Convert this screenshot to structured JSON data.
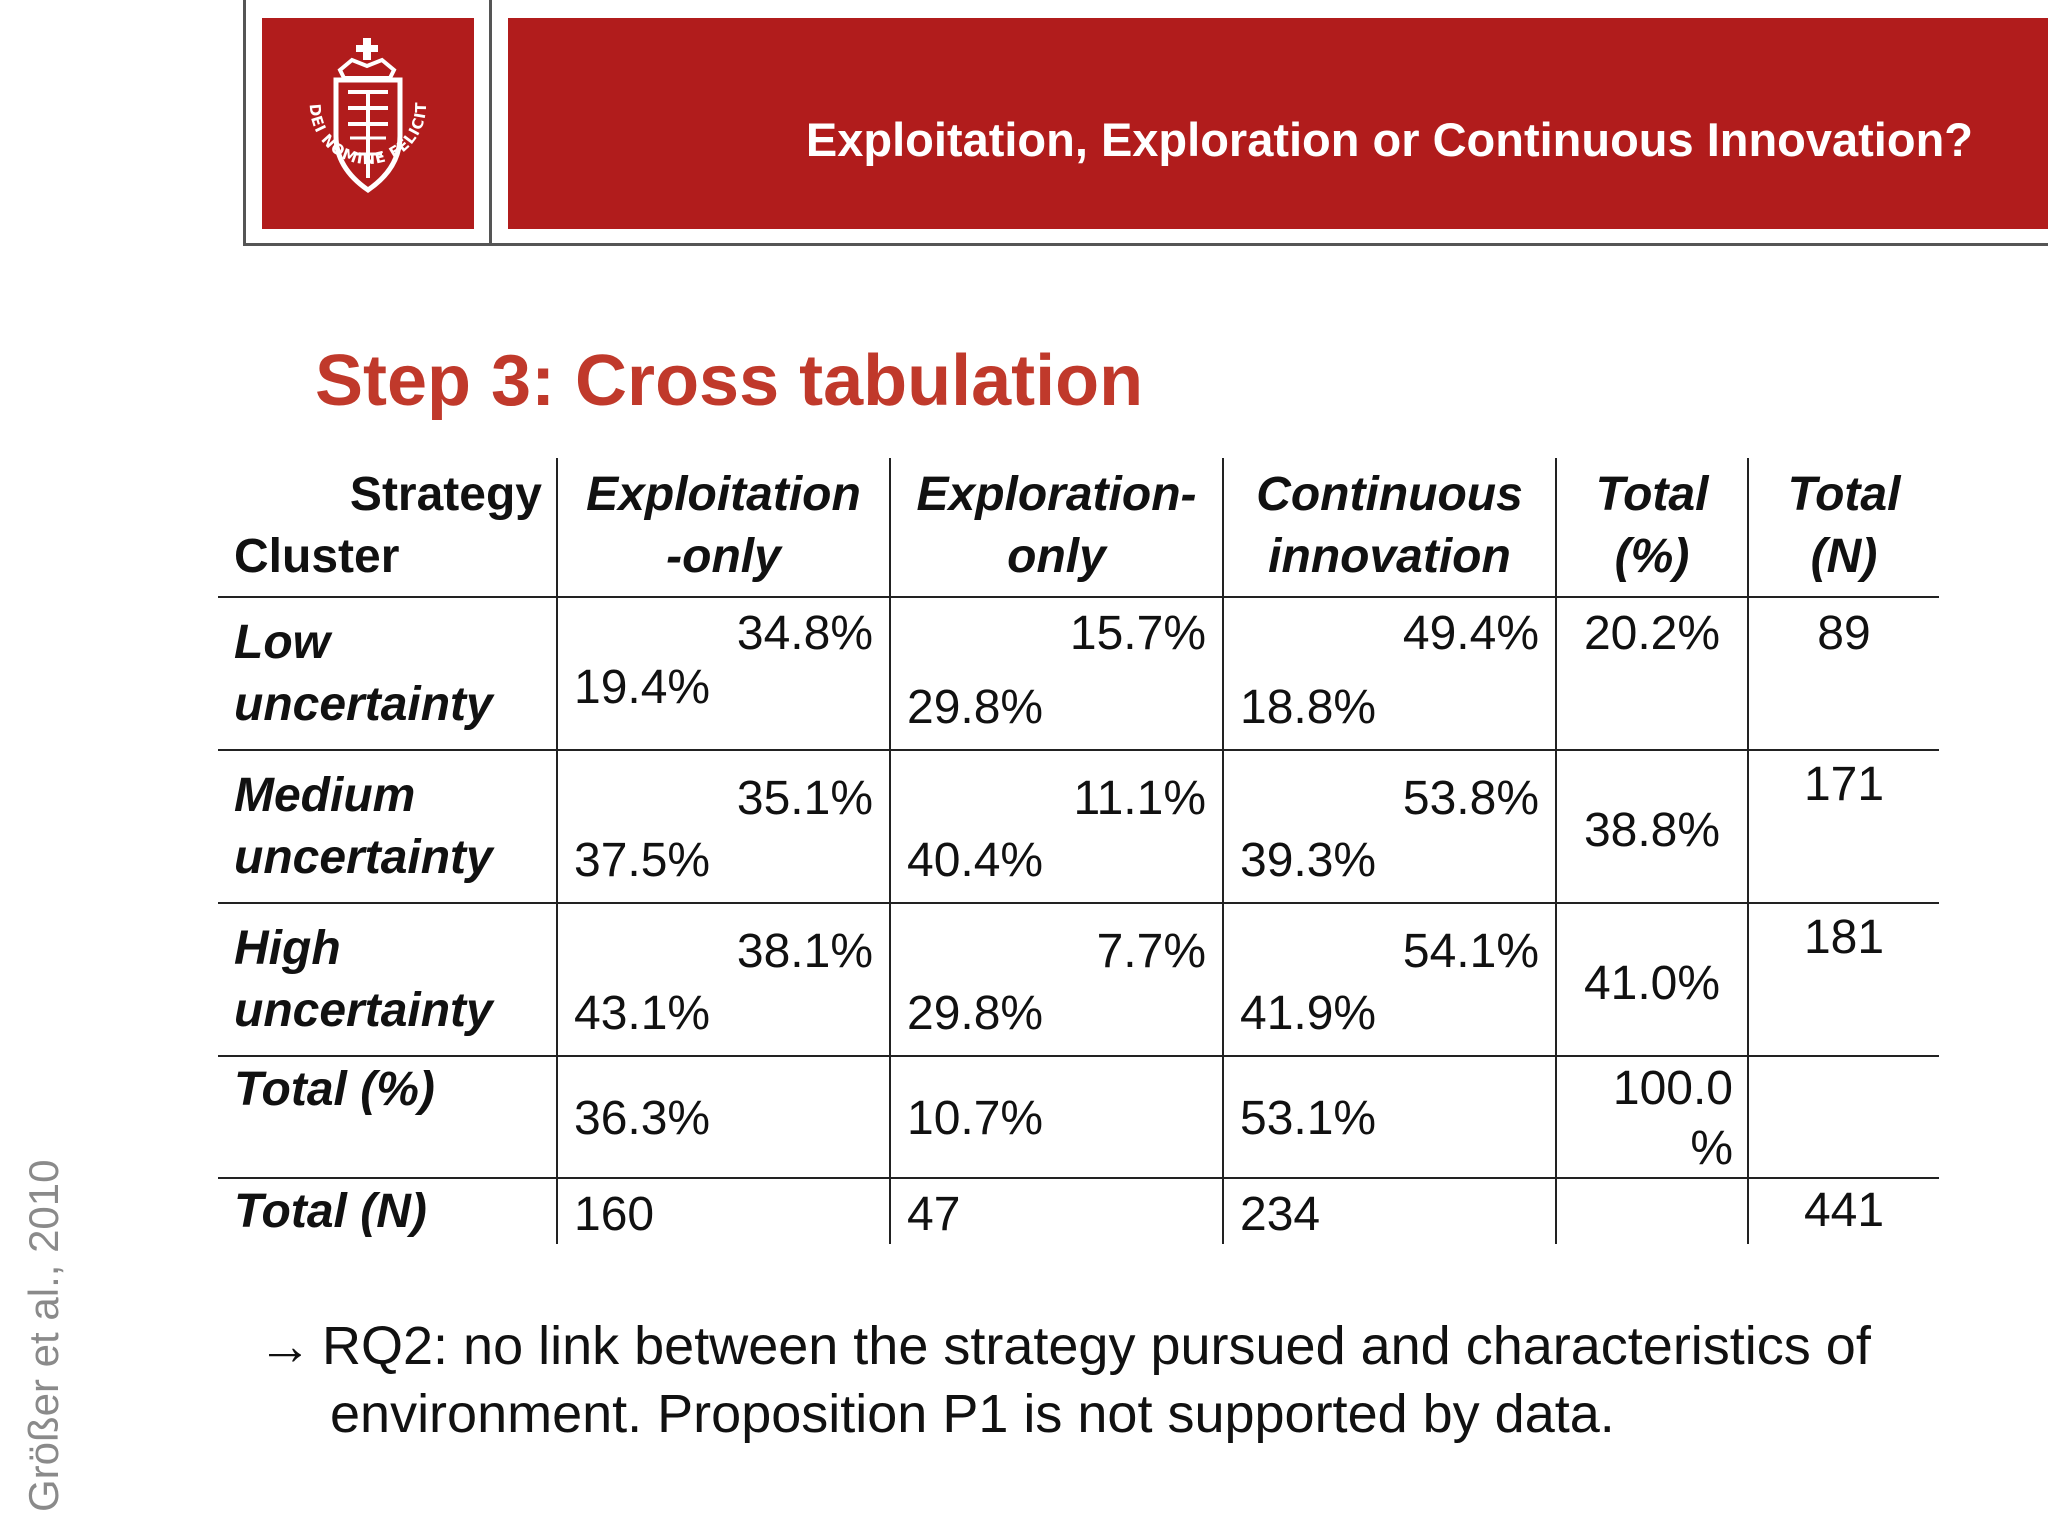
{
  "header": {
    "title": "Exploitation, Exploration or Continuous Innovation?",
    "logo_motto": "IN DEI NOMINE FELICITER",
    "brand_color": "#b11c1c"
  },
  "slide": {
    "heading": "Step 3: Cross tabulation",
    "heading_color": "#c0392b",
    "source_credit": "Größer et al., 2010"
  },
  "table": {
    "corner_line1": "Strategy",
    "corner_line2": "Cluster",
    "columns": [
      {
        "line1": "Exploitation",
        "line2": "-only"
      },
      {
        "line1": "Exploration-",
        "line2": "only"
      },
      {
        "line1": "Continuous",
        "line2": "innovation"
      },
      {
        "line1": "Total",
        "line2": "(%)"
      },
      {
        "line1": "Total",
        "line2": "(N)"
      }
    ],
    "rows": [
      {
        "label_line1": "Low",
        "label_line2": "uncertainty",
        "cells": [
          {
            "row_pct": "34.8%",
            "col_pct": "19.4%"
          },
          {
            "row_pct": "15.7%",
            "col_pct": "29.8%"
          },
          {
            "row_pct": "49.4%",
            "col_pct": "18.8%"
          }
        ],
        "total_pct": "20.2%",
        "total_n": "89"
      },
      {
        "label_line1": "Medium",
        "label_line2": "uncertainty",
        "cells": [
          {
            "row_pct": "35.1%",
            "col_pct": "37.5%"
          },
          {
            "row_pct": "11.1%",
            "col_pct": "40.4%"
          },
          {
            "row_pct": "53.8%",
            "col_pct": "39.3%"
          }
        ],
        "total_pct": "38.8%",
        "total_n": "171"
      },
      {
        "label_line1": "High",
        "label_line2": "uncertainty",
        "cells": [
          {
            "row_pct": "38.1%",
            "col_pct": "43.1%"
          },
          {
            "row_pct": "7.7%",
            "col_pct": "29.8%"
          },
          {
            "row_pct": "54.1%",
            "col_pct": "41.9%"
          }
        ],
        "total_pct": "41.0%",
        "total_n": "181"
      }
    ],
    "total_pct_row": {
      "label": "Total (%)",
      "values": [
        "36.3%",
        "10.7%",
        "53.1%"
      ],
      "total_line1": "100.0",
      "total_line2": "%"
    },
    "total_n_row": {
      "label": "Total (N)",
      "values": [
        "160",
        "47",
        "234"
      ],
      "grand_total": "441"
    }
  },
  "conclusion": {
    "arrow": "→",
    "line1": "RQ2: no link between the strategy pursued and characteristics of",
    "line2": "environment. Proposition P1 is not supported by data."
  }
}
